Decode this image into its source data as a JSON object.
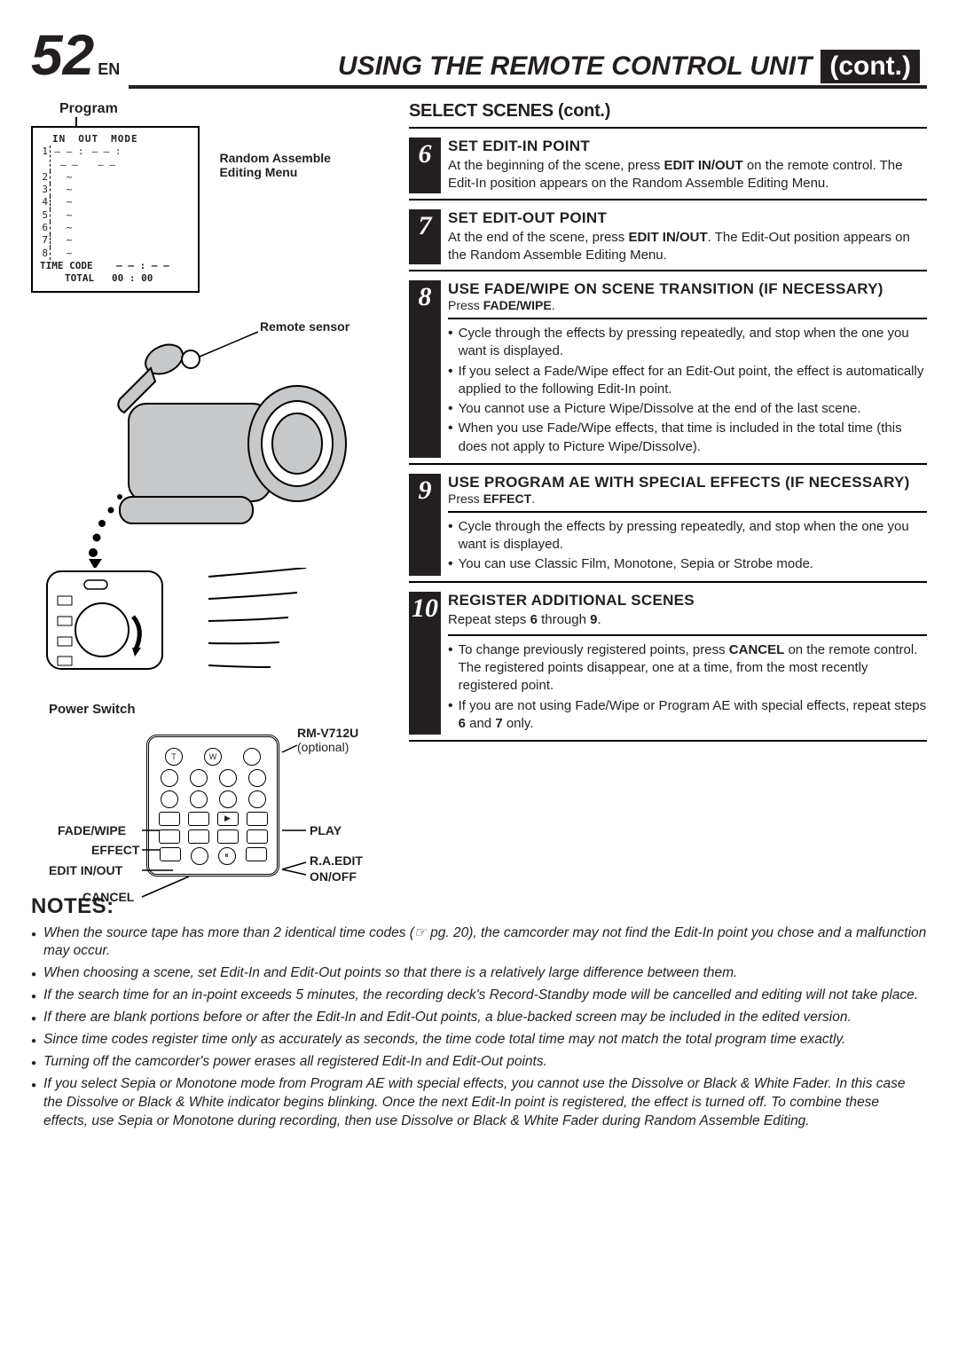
{
  "page": {
    "pageNumber": "52",
    "lang": "EN",
    "titleMain": "USING THE REMOTE CONTROL UNIT",
    "titleCont": "(cont.)"
  },
  "program": {
    "label": "Program",
    "headers": [
      "IN",
      "OUT",
      "MODE"
    ],
    "rows": [
      "1",
      "2",
      "3",
      "4",
      "5",
      "6",
      "7",
      "8"
    ],
    "row1_in": "– – : – –",
    "row1_out": "– – : – –",
    "tilde": "~",
    "footLabel": "TIME CODE",
    "footVal": "– – : – –",
    "totalLabel": "TOTAL",
    "totalVal": "00 : 00",
    "boxCaption": "Random Assemble Editing Menu"
  },
  "illus": {
    "remoteSensor": "Remote sensor",
    "powerSwitch": "Power Switch",
    "remoteModel": "RM-V712U",
    "remoteOptional": "(optional)",
    "btnT": "T",
    "btnW": "W"
  },
  "callouts": {
    "fadeWipe": "FADE/WIPE",
    "effect": "EFFECT",
    "editInOut": "EDIT IN/OUT",
    "cancel": "CANCEL",
    "play": "PLAY",
    "raEdit": "R.A.EDIT",
    "onOff": "ON/OFF"
  },
  "rightTitle": "SELECT SCENES (cont.)",
  "steps": [
    {
      "num": "6",
      "head": "SET EDIT-IN POINT",
      "text": "At the beginning of the scene, press <b>EDIT IN/OUT</b> on the remote control. The Edit-In position appears on the Random Assemble Editing Menu."
    },
    {
      "num": "7",
      "head": "SET EDIT-OUT POINT",
      "text": "At the end of the scene, press <b>EDIT IN/OUT</b>. The Edit-Out position appears on the Random Assemble Editing Menu."
    },
    {
      "num": "8",
      "head": "USE FADE/WIPE ON SCENE TRANSITION (IF NECESSARY)",
      "sub": "Press <b>FADE/WIPE</b>.",
      "bullets": [
        "Cycle through the effects by pressing repeatedly, and stop when the one you want is displayed.",
        "If you select a Fade/Wipe effect for an Edit-Out point, the effect is automatically applied to the following Edit-In point.",
        "You cannot use a Picture Wipe/Dissolve at the end of the last scene.",
        "When you use Fade/Wipe effects, that time is included in the total time (this does not apply to Picture Wipe/Dissolve)."
      ]
    },
    {
      "num": "9",
      "head": "USE PROGRAM AE WITH SPECIAL EFFECTS (IF NECESSARY)",
      "sub": "Press <b>EFFECT</b>.",
      "bullets": [
        "Cycle through the effects by pressing repeatedly, and stop when the one you want is displayed.",
        "You can use Classic Film, Monotone, Sepia or Strobe mode."
      ]
    },
    {
      "num": "10",
      "head": "REGISTER ADDITIONAL SCENES",
      "text": "Repeat steps <b>6</b> through <b>9</b>.",
      "bullets": [
        "To change previously registered points, press <b>CANCEL</b> on the remote control. The registered points disappear, one at a time, from the most recently registered point.",
        "If you are not using Fade/Wipe or Program AE with special effects, repeat steps <b>6</b> and <b>7</b> only."
      ]
    }
  ],
  "notes": {
    "title": "NOTES:",
    "items": [
      "When the source tape has more than 2 identical time codes (☞ pg. 20), the camcorder may not find the Edit-In point you chose and a malfunction may occur.",
      "When choosing a scene, set Edit-In and Edit-Out points so that there is a relatively large difference between them.",
      "If the search time for an in-point exceeds 5 minutes, the recording deck's Record-Standby mode will be cancelled and editing will not take place.",
      "If there are blank portions before or after the Edit-In and Edit-Out points, a blue-backed screen may be included in the edited version.",
      "Since time codes register time only as accurately as seconds, the time code total time may not match the total program time exactly.",
      "Turning off the camcorder's power erases all registered  Edit-In and Edit-Out points.",
      "If you select Sepia or Monotone mode from Program AE with special effects, you cannot use the Dissolve or Black & White Fader. In this case the Dissolve or Black & White indicator begins blinking. Once the next Edit-In point is registered, the effect is turned off. To combine these effects, use Sepia or Monotone during recording, then use Dissolve or Black & White Fader during Random Assemble Editing."
    ]
  },
  "colors": {
    "ink": "#231f20",
    "paper": "#ffffff",
    "grey": "#c7c8ca"
  }
}
